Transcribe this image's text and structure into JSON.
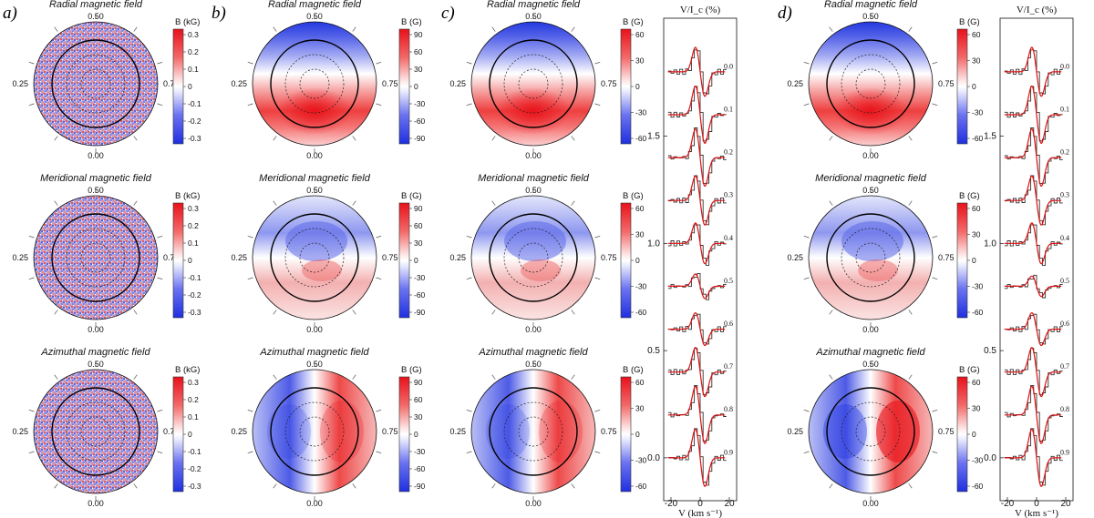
{
  "panel_labels": [
    "a)",
    "b)",
    "c)",
    "d)"
  ],
  "field_titles": [
    "Radial magnetic field",
    "Meridional magnetic field",
    "Azimuthal magnetic field"
  ],
  "map_phase_labels": {
    "top": "0.50",
    "left": "0.25",
    "right": "0.75",
    "bottom": "0.00"
  },
  "colorbar_units": [
    "B (kG)",
    "B (G)",
    "B (G)",
    "B (G)"
  ],
  "colorbar_ticks": [
    [
      "0.3",
      "0.2",
      "0.1",
      "0",
      "-0.1",
      "-0.2",
      "-0.3"
    ],
    [
      "90",
      "60",
      "30",
      "0",
      "-30",
      "-60",
      "-90"
    ],
    [
      "60",
      "30",
      "0",
      "-30",
      "-60"
    ],
    [
      "60",
      "30",
      "0",
      "-30",
      "-60"
    ]
  ],
  "colors": {
    "positive": "#e8121a",
    "negative": "#1f2fe0",
    "neutral": "#ffffff",
    "model_line": "#e01010",
    "observed_line": "#333333"
  },
  "chart_data": [
    {
      "type": "line",
      "panel": "c)",
      "ylabel": "V/I_c (%)",
      "xlabel": "V (km s⁻¹)",
      "xlim": [
        -25,
        25
      ],
      "ylim": [
        -0.2,
        2.05
      ],
      "x_ticks": [
        -20,
        0,
        20
      ],
      "y_ticks": [
        0.0,
        0.5,
        1.0,
        1.5
      ],
      "phases": [
        "0.0",
        "0.1",
        "0.2",
        "0.3",
        "0.4",
        "0.5",
        "0.6",
        "0.7",
        "0.8",
        "0.9"
      ],
      "offsets": [
        1.8,
        1.6,
        1.4,
        1.2,
        1.0,
        0.8,
        0.6,
        0.4,
        0.2,
        0.0
      ],
      "amplitudes": [
        0.12,
        0.14,
        0.14,
        0.12,
        0.1,
        0.06,
        0.08,
        0.12,
        0.14,
        0.14
      ]
    },
    {
      "type": "line",
      "panel": "d)",
      "ylabel": "V/I_c (%)",
      "xlabel": "V (km s⁻¹)",
      "xlim": [
        -25,
        25
      ],
      "ylim": [
        -0.2,
        2.05
      ],
      "x_ticks": [
        -20,
        0,
        20
      ],
      "y_ticks": [
        0.0,
        0.5,
        1.0,
        1.5
      ],
      "phases": [
        "0.0",
        "0.1",
        "0.2",
        "0.3",
        "0.4",
        "0.5",
        "0.6",
        "0.7",
        "0.8",
        "0.9"
      ],
      "offsets": [
        1.8,
        1.6,
        1.4,
        1.2,
        1.0,
        0.8,
        0.6,
        0.4,
        0.2,
        0.0
      ],
      "amplitudes": [
        0.12,
        0.14,
        0.14,
        0.12,
        0.1,
        0.05,
        0.08,
        0.12,
        0.14,
        0.14
      ]
    }
  ]
}
